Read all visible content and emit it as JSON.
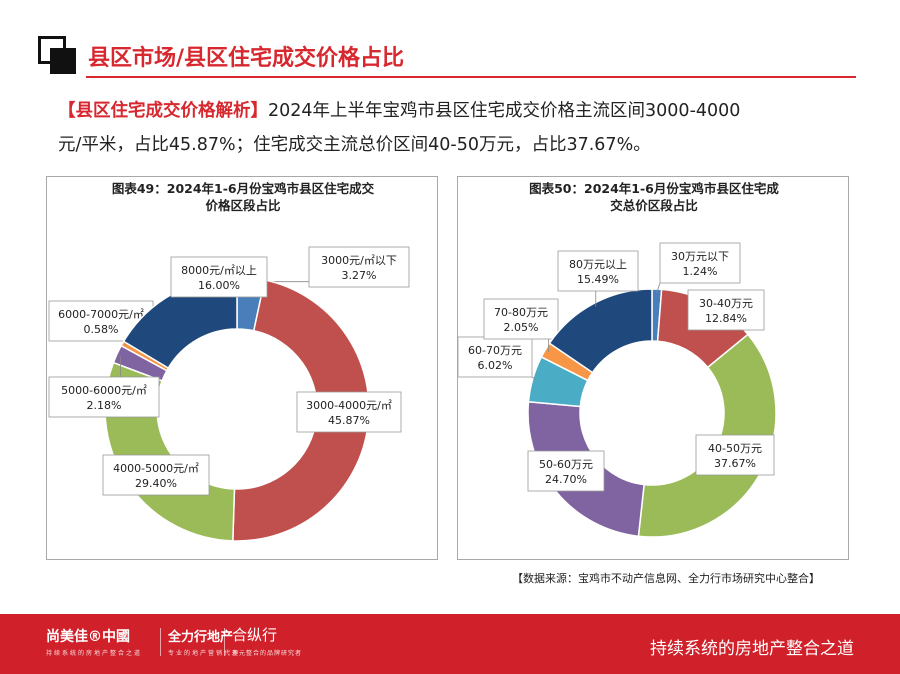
{
  "header": {
    "title": "县区市场/县区住宅成交价格占比"
  },
  "intro": {
    "tag": "【县区住宅成交价格解析】",
    "line1": "2024年上半年宝鸡市县区住宅成交价格主流区间3000-4000",
    "line2": "元/平米，占比45.87%；住宅成交主流总价区间40-50万元，占比37.67%。"
  },
  "chart_data": [
    {
      "type": "pie",
      "title_lines": [
        "图表49：2024年1-6月份宝鸡市县区住宅成交",
        "价格区段占比"
      ],
      "slices": [
        {
          "label": "3000元/㎡以下",
          "value": 3.27,
          "pct": "3.27%",
          "color": "#4a7ebb"
        },
        {
          "label": "3000-4000元/㎡",
          "value": 45.87,
          "pct": "45.87%",
          "color": "#c0504d"
        },
        {
          "label": "4000-5000元/㎡",
          "value": 29.4,
          "pct": "29.40%",
          "color": "#9bbb59"
        },
        {
          "label": "5000-6000元/㎡",
          "value": 2.18,
          "pct": "2.18%",
          "color": "#8064a2"
        },
        {
          "label": "6000-7000元/㎡",
          "value": 0.58,
          "pct": "0.58%",
          "color": "#f79646"
        },
        {
          "label": "8000元/㎡以上",
          "value": 16.0,
          "pct": "16.00%",
          "color": "#1f497d"
        }
      ]
    },
    {
      "type": "pie",
      "title_lines": [
        "图表50：2024年1-6月份宝鸡市县区住宅成",
        "交总价区段占比"
      ],
      "slices": [
        {
          "label": "30万元以下",
          "value": 1.24,
          "pct": "1.24%",
          "color": "#4a7ebb"
        },
        {
          "label": "30-40万元",
          "value": 12.84,
          "pct": "12.84%",
          "color": "#c0504d"
        },
        {
          "label": "40-50万元",
          "value": 37.67,
          "pct": "37.67%",
          "color": "#9bbb59"
        },
        {
          "label": "50-60万元",
          "value": 24.7,
          "pct": "24.70%",
          "color": "#8064a2"
        },
        {
          "label": "60-70万元",
          "value": 6.02,
          "pct": "6.02%",
          "color": "#4bacc6"
        },
        {
          "label": "70-80万元",
          "value": 2.05,
          "pct": "2.05%",
          "color": "#f79646"
        },
        {
          "label": "80万元以上",
          "value": 15.49,
          "pct": "15.49%",
          "color": "#1f497d"
        }
      ]
    }
  ],
  "source": "【数据来源：宝鸡市不动产信息网、全力行市场研究中心整合】",
  "footer": {
    "brand1": "尚美佳®中國",
    "brand1_sub": "持续系统的房地产整合之道",
    "brand2": "全力行地产",
    "brand2_sub": "专业的地产营销代理",
    "brand3": "合纵行",
    "brand3_sub": "多元整合的品牌研究者",
    "slogan": "持续系统的房地产整合之道"
  }
}
